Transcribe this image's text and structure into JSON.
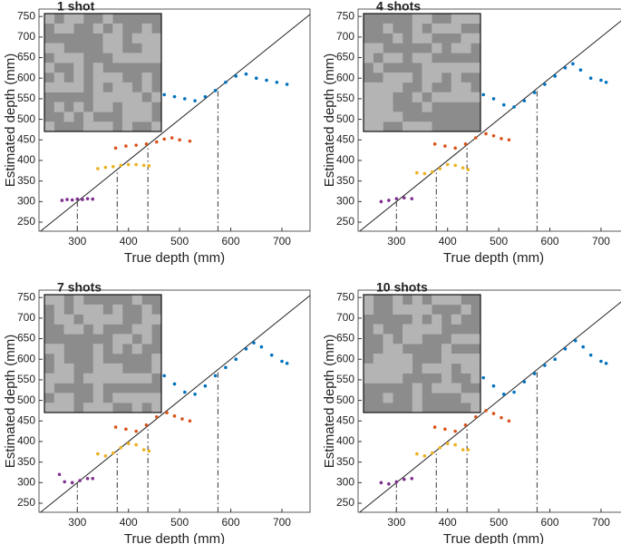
{
  "chart_data": [
    {
      "type": "scatter",
      "title": "1 shot",
      "xlabel": "True depth (mm)",
      "ylabel": "Estimated depth (mm)",
      "xlim": [
        225,
        755
      ],
      "ylim": [
        228,
        768
      ],
      "xticks": [
        300,
        400,
        500,
        600,
        700
      ],
      "yticks": [
        250,
        300,
        350,
        400,
        450,
        500,
        550,
        600,
        650,
        700,
        750
      ],
      "identity_line": true,
      "vlines": [
        300,
        378,
        438,
        575
      ],
      "series": [
        {
          "color": "#7e2f8e",
          "x": [
            270,
            280,
            290,
            300,
            310,
            320,
            330
          ],
          "values": [
            303,
            305,
            304,
            306,
            305,
            307,
            306
          ]
        },
        {
          "color": "#edb120",
          "x": [
            340,
            355,
            370,
            385,
            400,
            415,
            430,
            440
          ],
          "values": [
            380,
            383,
            385,
            388,
            390,
            390,
            388,
            387
          ]
        },
        {
          "color": "#d95319",
          "x": [
            375,
            395,
            415,
            435,
            455,
            470,
            485,
            500,
            520
          ],
          "values": [
            430,
            435,
            437,
            440,
            445,
            452,
            455,
            450,
            447
          ]
        },
        {
          "color": "#0072bd",
          "x": [
            470,
            490,
            510,
            530,
            550,
            570,
            590,
            610,
            630,
            650,
            670,
            690,
            710
          ],
          "values": [
            560,
            555,
            550,
            545,
            555,
            570,
            590,
            605,
            610,
            600,
            595,
            590,
            585
          ]
        }
      ]
    },
    {
      "type": "scatter",
      "title": "4 shots",
      "xlabel": "True depth (mm)",
      "ylabel": "Estimated depth (mm)",
      "xlim": [
        225,
        755
      ],
      "ylim": [
        228,
        768
      ],
      "xticks": [
        300,
        400,
        500,
        600,
        700
      ],
      "yticks": [
        250,
        300,
        350,
        400,
        450,
        500,
        550,
        600,
        650,
        700,
        750
      ],
      "identity_line": true,
      "vlines": [
        300,
        378,
        438,
        575
      ],
      "series": [
        {
          "color": "#7e2f8e",
          "x": [
            270,
            285,
            300,
            315,
            330
          ],
          "values": [
            300,
            303,
            307,
            309,
            307
          ]
        },
        {
          "color": "#edb120",
          "x": [
            340,
            355,
            370,
            385,
            400,
            415,
            430,
            440
          ],
          "values": [
            370,
            368,
            372,
            380,
            390,
            388,
            382,
            378
          ]
        },
        {
          "color": "#d95319",
          "x": [
            375,
            395,
            415,
            435,
            455,
            475,
            490,
            505,
            520
          ],
          "values": [
            440,
            435,
            430,
            440,
            455,
            465,
            460,
            453,
            450
          ]
        },
        {
          "color": "#0072bd",
          "x": [
            470,
            490,
            510,
            530,
            550,
            570,
            590,
            610,
            630,
            645,
            660,
            680,
            700,
            710
          ],
          "values": [
            560,
            550,
            535,
            530,
            545,
            565,
            585,
            605,
            625,
            635,
            620,
            600,
            595,
            590
          ]
        }
      ]
    },
    {
      "type": "scatter",
      "title": "7 shots",
      "xlabel": "True depth (mm)",
      "ylabel": "Estimated depth (mm)",
      "xlim": [
        225,
        755
      ],
      "ylim": [
        228,
        768
      ],
      "xticks": [
        300,
        400,
        500,
        600,
        700
      ],
      "yticks": [
        250,
        300,
        350,
        400,
        450,
        500,
        550,
        600,
        650,
        700,
        750
      ],
      "identity_line": true,
      "vlines": [
        300,
        378,
        438,
        575
      ],
      "series": [
        {
          "color": "#7e2f8e",
          "x": [
            265,
            275,
            290,
            305,
            320,
            330
          ],
          "values": [
            320,
            302,
            300,
            305,
            310,
            310
          ]
        },
        {
          "color": "#edb120",
          "x": [
            340,
            355,
            370,
            385,
            400,
            415,
            430,
            440
          ],
          "values": [
            370,
            365,
            372,
            385,
            395,
            392,
            380,
            377
          ]
        },
        {
          "color": "#d95319",
          "x": [
            375,
            395,
            415,
            435,
            455,
            475,
            490,
            505,
            520
          ],
          "values": [
            435,
            430,
            425,
            440,
            460,
            470,
            462,
            455,
            450
          ]
        },
        {
          "color": "#0072bd",
          "x": [
            470,
            490,
            510,
            530,
            550,
            570,
            590,
            610,
            630,
            645,
            660,
            680,
            700,
            710
          ],
          "values": [
            560,
            540,
            520,
            515,
            535,
            560,
            580,
            600,
            625,
            640,
            630,
            610,
            595,
            590
          ]
        }
      ]
    },
    {
      "type": "scatter",
      "title": "10 shots",
      "xlabel": "True depth (mm)",
      "ylabel": "Estimated depth (mm)",
      "xlim": [
        225,
        755
      ],
      "ylim": [
        228,
        768
      ],
      "xticks": [
        300,
        400,
        500,
        600,
        700
      ],
      "yticks": [
        250,
        300,
        350,
        400,
        450,
        500,
        550,
        600,
        650,
        700,
        750
      ],
      "identity_line": true,
      "vlines": [
        300,
        378,
        438,
        575
      ],
      "series": [
        {
          "color": "#7e2f8e",
          "x": [
            270,
            285,
            300,
            315,
            330
          ],
          "values": [
            300,
            297,
            302,
            308,
            310
          ]
        },
        {
          "color": "#edb120",
          "x": [
            340,
            355,
            370,
            385,
            400,
            415,
            430,
            440
          ],
          "values": [
            370,
            365,
            372,
            385,
            395,
            392,
            380,
            380
          ]
        },
        {
          "color": "#d95319",
          "x": [
            375,
            395,
            415,
            435,
            455,
            475,
            490,
            505,
            520
          ],
          "values": [
            435,
            430,
            425,
            440,
            460,
            475,
            468,
            458,
            450
          ]
        },
        {
          "color": "#0072bd",
          "x": [
            470,
            490,
            510,
            530,
            550,
            570,
            590,
            610,
            630,
            650,
            665,
            680,
            700,
            710
          ],
          "values": [
            555,
            535,
            515,
            520,
            545,
            565,
            585,
            600,
            625,
            645,
            630,
            610,
            595,
            590
          ]
        }
      ]
    }
  ]
}
